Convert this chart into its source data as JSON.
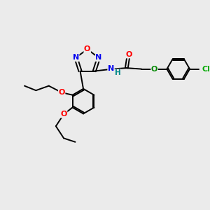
{
  "background_color": "#ebebeb",
  "bond_color": "#000000",
  "atom_colors": {
    "N_blue": "#0000ee",
    "O_red": "#ff0000",
    "O_green": "#008800",
    "Cl_green": "#00aa00",
    "H_teal": "#008888",
    "C": "#000000"
  },
  "figsize": [
    3.0,
    3.0
  ],
  "dpi": 100,
  "xlim": [
    0,
    10
  ],
  "ylim": [
    0,
    10
  ]
}
